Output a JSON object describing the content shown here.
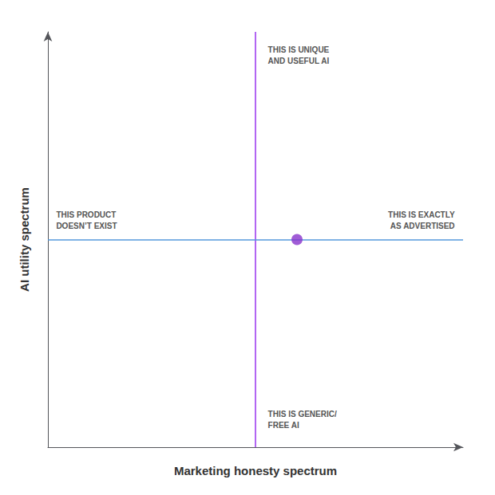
{
  "chart_data": {
    "type": "scatter",
    "xlabel": "Marketing honesty spectrum",
    "ylabel": "AI utility spectrum",
    "xlim": [
      0,
      1
    ],
    "ylim": [
      0,
      1
    ],
    "tick_labels": false,
    "grid": false,
    "x": [
      0.6
    ],
    "values": [
      0.5
    ],
    "color": "#8833CC",
    "reference_lines": [
      {
        "axis": "x",
        "value": 0.5,
        "color": "#9933EE"
      },
      {
        "axis": "y",
        "value": 0.5,
        "color": "#5599DD"
      }
    ],
    "annotations": [
      "THIS IS UNIQUE\nAND USEFUL AI",
      "THIS PRODUCT\nDOESN’T EXIST",
      "THIS IS EXACTLY\nAS ADVERTISED",
      "THIS IS GENERIC/\nFREE AI"
    ]
  }
}
